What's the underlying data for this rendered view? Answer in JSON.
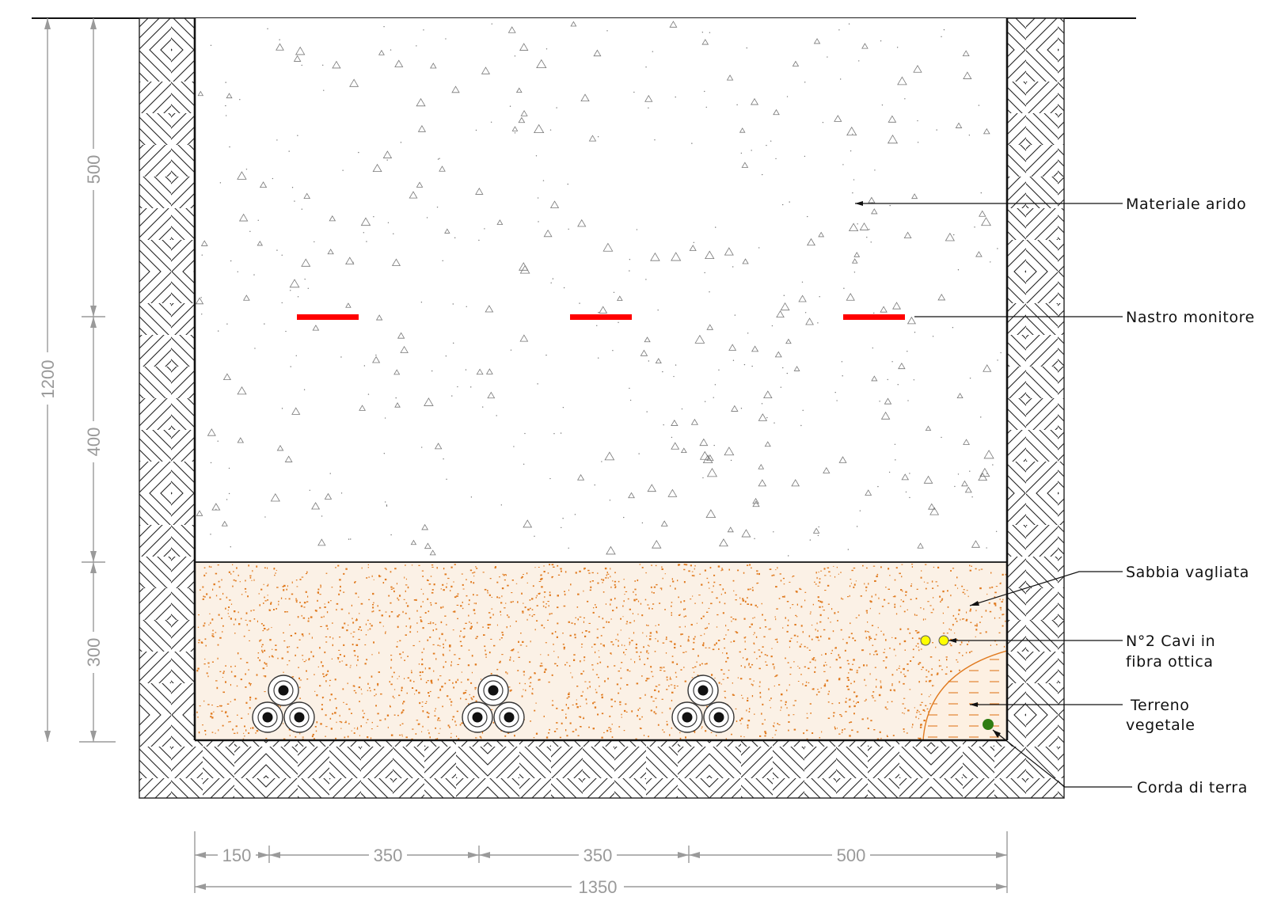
{
  "dimensions": {
    "total_depth": "1200",
    "depth_segments": [
      "500",
      "400",
      "300"
    ],
    "width_segments": [
      "150",
      "350",
      "350",
      "500"
    ],
    "total_width": "1350"
  },
  "labels": {
    "materiale_arido": "Materiale arido",
    "nastro_monitore": "Nastro monitore",
    "sabbia_vagliata": "Sabbia vagliata",
    "cavi_fibra_line1": "N°2 Cavi in",
    "cavi_fibra_line2": "fibra ottica",
    "terreno_line1": "Terreno",
    "terreno_line2": "vegetale",
    "corda_terra": "Corda di terra"
  },
  "colors": {
    "warning_tape": "#ff0000",
    "sand_speckle": "#e07a1f",
    "fiber_cable": "#ffff00",
    "earth_rope": "#2f7d12",
    "soil_hatch": "#222222",
    "dimension": "#9a9a9a"
  },
  "counts": {
    "cable_groups": 3,
    "cables_per_group": 3,
    "fiber_cables": 2
  }
}
